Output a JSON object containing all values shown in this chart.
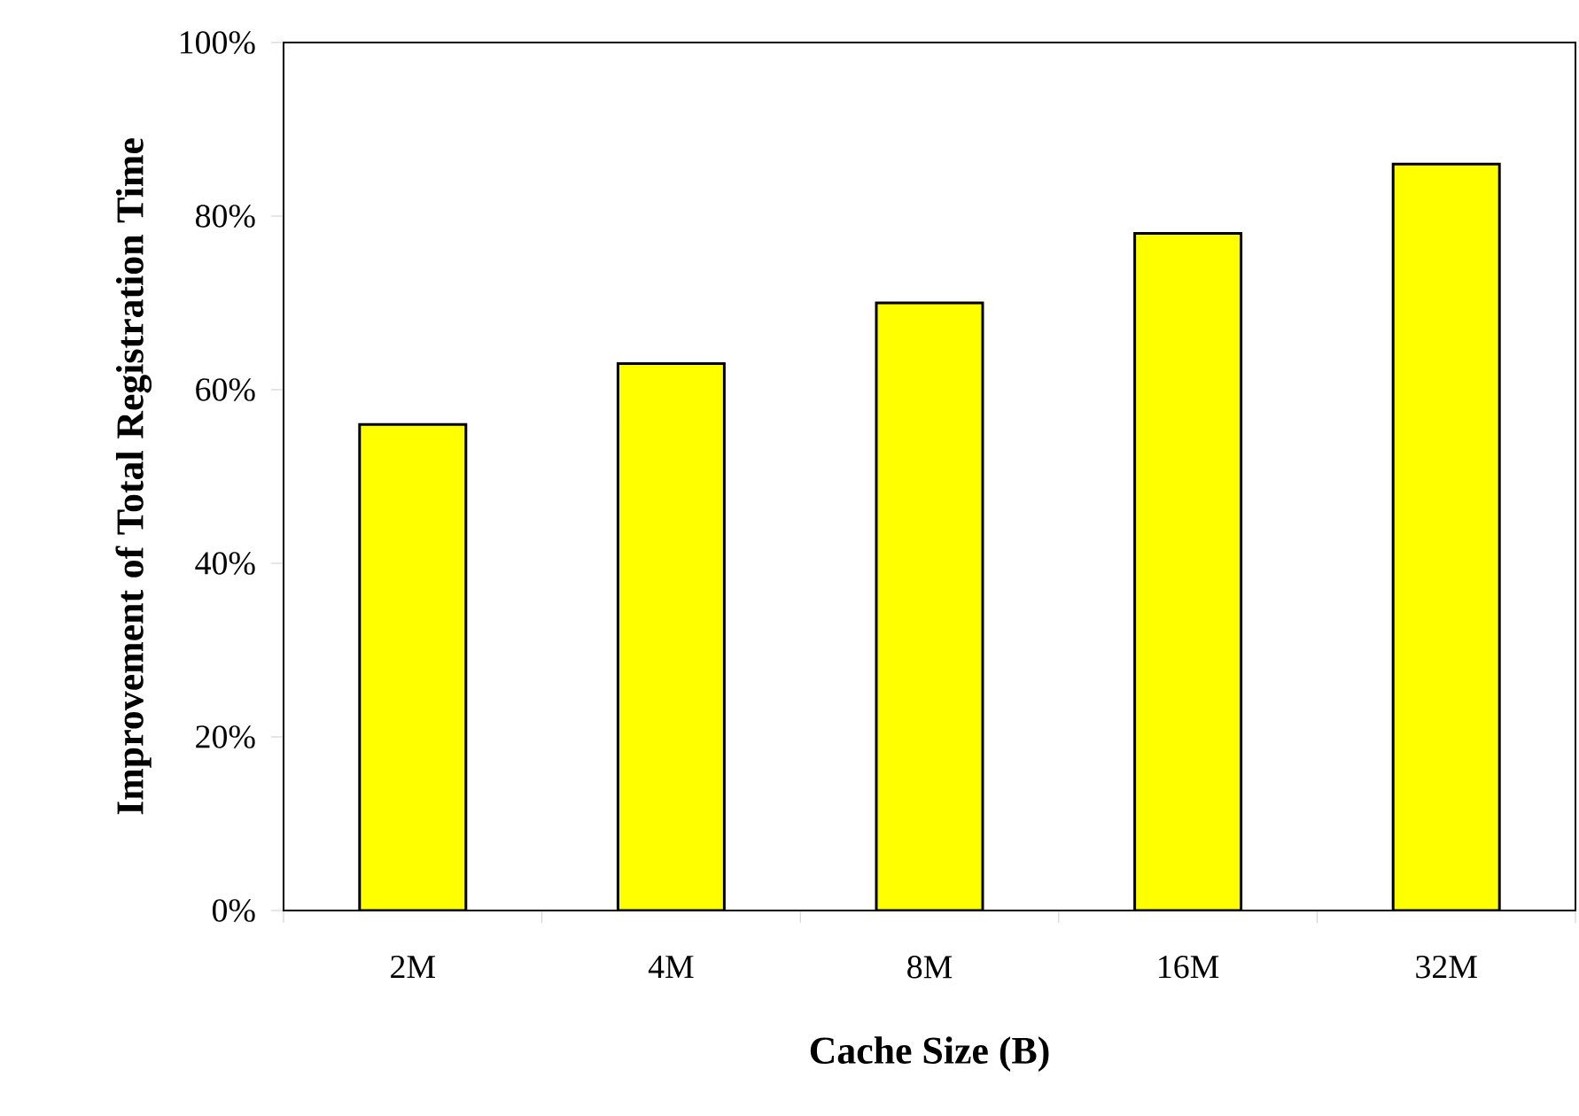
{
  "chart_data": {
    "type": "bar",
    "xlabel": "Cache Size (B)",
    "ylabel": "Improvement of Total Registration Time",
    "categories": [
      "2M",
      "4M",
      "8M",
      "16M",
      "32M"
    ],
    "values": [
      56,
      63,
      70,
      78,
      86
    ],
    "color": "#ffff00",
    "ylim": [
      0,
      100
    ],
    "yticks": [
      {
        "value": 0,
        "label": "0%"
      },
      {
        "value": 20,
        "label": "20%"
      },
      {
        "value": 40,
        "label": "40%"
      },
      {
        "value": 60,
        "label": "60%"
      },
      {
        "value": 80,
        "label": "80%"
      },
      {
        "value": 100,
        "label": "100%"
      }
    ]
  }
}
